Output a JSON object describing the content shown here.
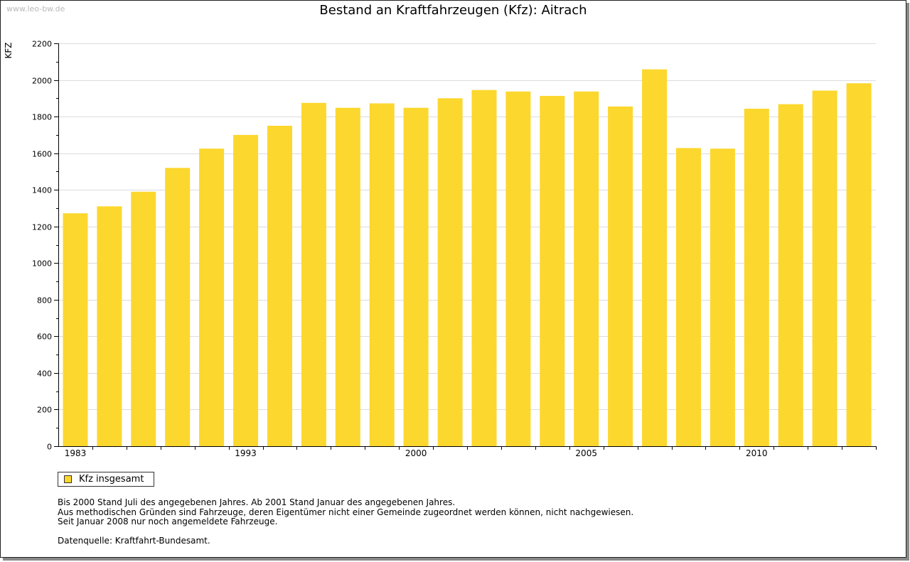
{
  "watermark": "www.leo-bw.de",
  "colors": {
    "bar": "#FCD72E",
    "grid": "#dcdcdc",
    "axis": "#000000"
  },
  "legend": {
    "label": "Kfz insgesamt",
    "icon": "square-swatch"
  },
  "notes": {
    "line1": "Bis 2000 Stand Juli des angegebenen Jahres. Ab 2001 Stand Januar des angegebenen Jahres.",
    "line2": "Aus methodischen Gründen sind Fahrzeuge, deren Eigentümer nicht einer Gemeinde zugeordnet werden können, nicht nachgewiesen.",
    "line3": "Seit Januar 2008 nur noch angemeldete Fahrzeuge.",
    "source": "Datenquelle: Kraftfahrt-Bundesamt."
  },
  "chart_data": {
    "type": "bar",
    "title": "Bestand an Kraftfahrzeugen (Kfz): Aitrach",
    "xlabel": "",
    "ylabel": "KFZ",
    "ylim": [
      0,
      2200
    ],
    "yticks": [
      0,
      200,
      400,
      600,
      800,
      1000,
      1200,
      1400,
      1600,
      1800,
      2000,
      2200
    ],
    "grid": true,
    "legend_position": "bottom-left",
    "categories": [
      "1983",
      "",
      "",
      "",
      "",
      "1993",
      "",
      "",
      "",
      "",
      "2000",
      "",
      "",
      "",
      "",
      "2005",
      "",
      "",
      "",
      "",
      "2010",
      "",
      "",
      ""
    ],
    "x_tick_labels": [
      {
        "index": 0,
        "label": "1983"
      },
      {
        "index": 5,
        "label": "1993"
      },
      {
        "index": 10,
        "label": "2000"
      },
      {
        "index": 15,
        "label": "2005"
      },
      {
        "index": 20,
        "label": "2010"
      }
    ],
    "series": [
      {
        "name": "Kfz insgesamt",
        "values": [
          1272,
          1310,
          1390,
          1520,
          1625,
          1700,
          1750,
          1875,
          1848,
          1872,
          1848,
          1900,
          1945,
          1937,
          1913,
          1937,
          1855,
          2058,
          1628,
          1625,
          1843,
          1868,
          1942,
          1982
        ]
      }
    ]
  }
}
